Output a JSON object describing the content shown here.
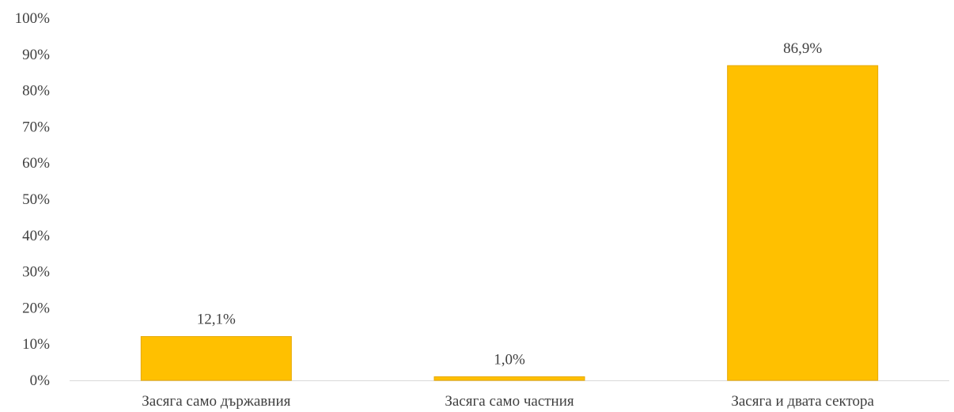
{
  "chart_data": {
    "type": "bar",
    "categories": [
      "Засяга само държавния",
      "Засяга само частния",
      "Засяга и двата сектора"
    ],
    "values": [
      12.1,
      1.0,
      86.9
    ],
    "data_labels": [
      "12,1%",
      "1,0%",
      "86,9%"
    ],
    "y_ticks": [
      "0%",
      "10%",
      "20%",
      "30%",
      "40%",
      "50%",
      "60%",
      "70%",
      "80%",
      "90%",
      "100%"
    ],
    "ylim": [
      0,
      100
    ],
    "grid": false,
    "legend": "none",
    "colors": {
      "bar": "#FFC000",
      "bar_edge": "#E6A800",
      "axis": "#D9D9D9",
      "text": "#404040"
    }
  }
}
